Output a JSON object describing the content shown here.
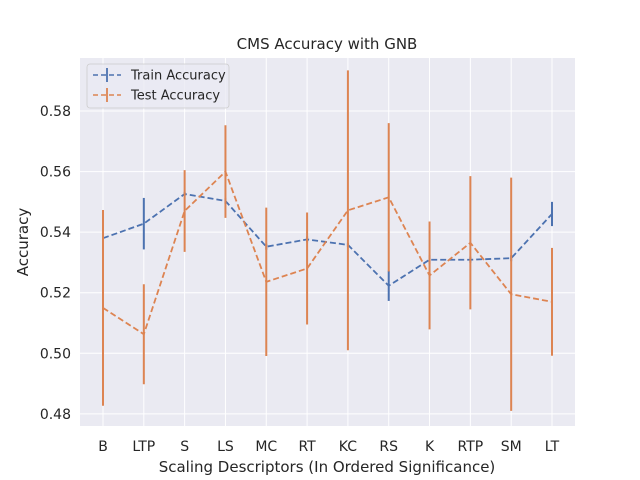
{
  "chart_data": {
    "type": "line",
    "title": "CMS Accuracy with GNB",
    "xlabel": "Scaling Descriptors (In Ordered Significance)",
    "ylabel": "Accuracy",
    "categories": [
      "B",
      "LTP",
      "S",
      "LS",
      "MC",
      "RT",
      "KC",
      "RS",
      "K",
      "RTP",
      "SM",
      "LT"
    ],
    "ylim": [
      0.476,
      0.5975
    ],
    "yticks": [
      0.48,
      0.5,
      0.52,
      0.54,
      0.56,
      0.58
    ],
    "ytick_labels": [
      "0.48",
      "0.50",
      "0.52",
      "0.54",
      "0.56",
      "0.58"
    ],
    "grid": true,
    "legend_position": "top-left",
    "series": [
      {
        "name": "Train Accuracy",
        "color": "#4c72b0",
        "values": [
          0.538,
          0.5428,
          0.5526,
          0.5503,
          0.5352,
          0.5376,
          0.5358,
          0.5223,
          0.5309,
          0.5309,
          0.5314,
          0.546
        ],
        "errors": [
          0.0007,
          0.0085,
          0.0007,
          0.001,
          0.001,
          0.001,
          0.0007,
          0.005,
          0.0015,
          0.001,
          0.001,
          0.004
        ]
      },
      {
        "name": "Test Accuracy",
        "color": "#dd8452",
        "values": [
          0.515,
          0.5063,
          0.547,
          0.56,
          0.5236,
          0.528,
          0.5472,
          0.5515,
          0.5257,
          0.5365,
          0.5195,
          0.517
        ],
        "errors": [
          0.0323,
          0.0165,
          0.0135,
          0.0153,
          0.0245,
          0.0185,
          0.0462,
          0.0245,
          0.0178,
          0.022,
          0.0385,
          0.0178
        ]
      }
    ]
  }
}
